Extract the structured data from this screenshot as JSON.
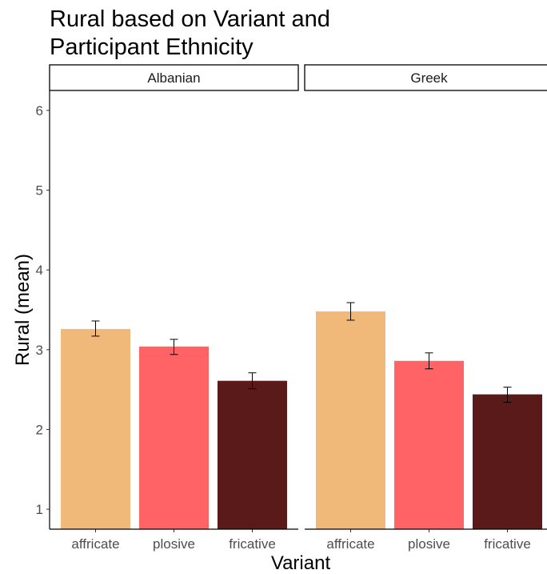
{
  "chart_data": {
    "type": "bar",
    "title": "Rural based on Variant and\nParticipant Ethnicity",
    "xlabel": "Variant",
    "ylabel": "Rural (mean)",
    "ylim": [
      0.75,
      6.25
    ],
    "yticks": [
      1,
      2,
      3,
      4,
      5,
      6
    ],
    "categories": [
      "affricate",
      "plosive",
      "fricative"
    ],
    "colors": [
      "#F0B97A",
      "#FF6366",
      "#5A1A19"
    ],
    "panels": [
      {
        "name": "Albanian",
        "values": [
          3.26,
          3.04,
          2.61
        ],
        "error_low": [
          3.17,
          2.94,
          2.51
        ],
        "error_high": [
          3.36,
          3.13,
          2.71
        ]
      },
      {
        "name": "Greek",
        "values": [
          3.48,
          2.86,
          2.44
        ],
        "error_low": [
          3.37,
          2.76,
          2.34
        ],
        "error_high": [
          3.59,
          2.96,
          2.53
        ]
      }
    ]
  }
}
